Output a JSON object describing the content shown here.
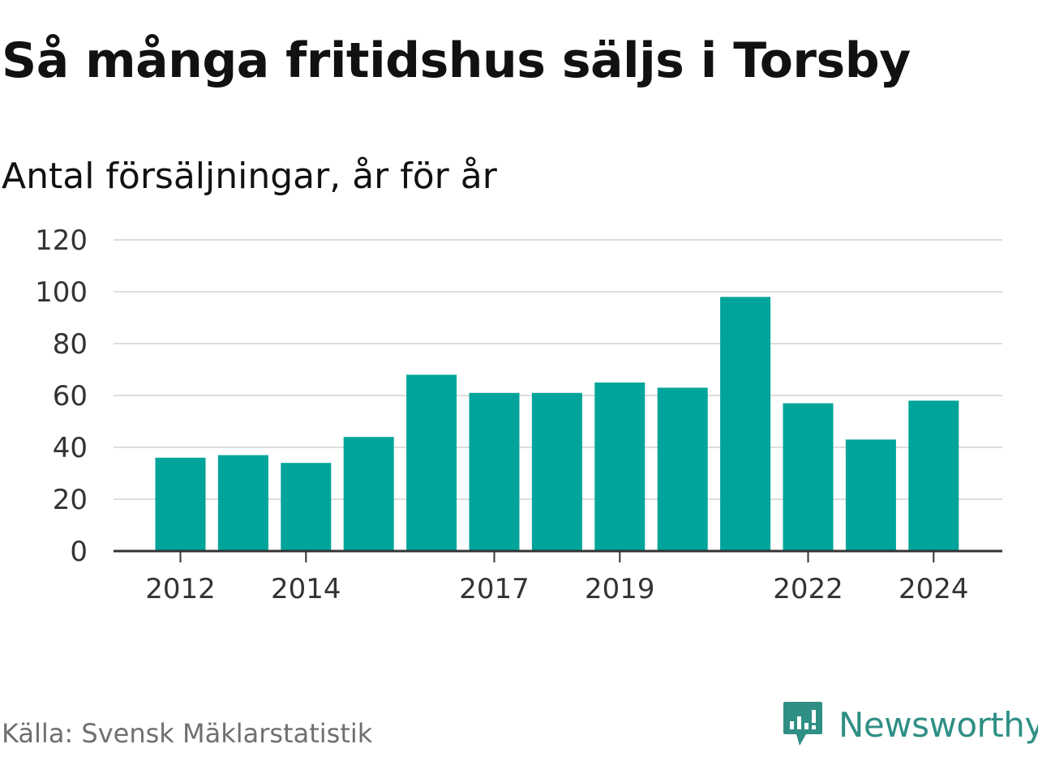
{
  "title": "Så många fritidshus säljs i Torsby",
  "subtitle": "Antal försäljningar, år för år",
  "source": "Källa: Svensk Mäklarstatistik",
  "brand": {
    "name": "Newsworthy",
    "icon": "newsworthy-logo-icon",
    "color": "#2f8f85"
  },
  "colors": {
    "bar": "#00a49a",
    "grid": "#dddddd",
    "axis": "#333333"
  },
  "chart_data": {
    "type": "bar",
    "title": "Så många fritidshus säljs i Torsby",
    "subtitle": "Antal försäljningar, år för år",
    "categories": [
      "2012",
      "2013",
      "2014",
      "2015",
      "2016",
      "2017",
      "2018",
      "2019",
      "2020",
      "2021",
      "2022",
      "2023",
      "2024"
    ],
    "values": [
      36,
      37,
      34,
      44,
      68,
      61,
      61,
      65,
      63,
      98,
      57,
      43,
      58
    ],
    "x_tick_labels": [
      "2012",
      "2014",
      "2017",
      "2019",
      "2022",
      "2024"
    ],
    "y_ticks": [
      0,
      20,
      40,
      60,
      80,
      100,
      120
    ],
    "ylim": [
      0,
      120
    ],
    "xlabel": "",
    "ylabel": "",
    "grid": true,
    "legend": "none"
  }
}
